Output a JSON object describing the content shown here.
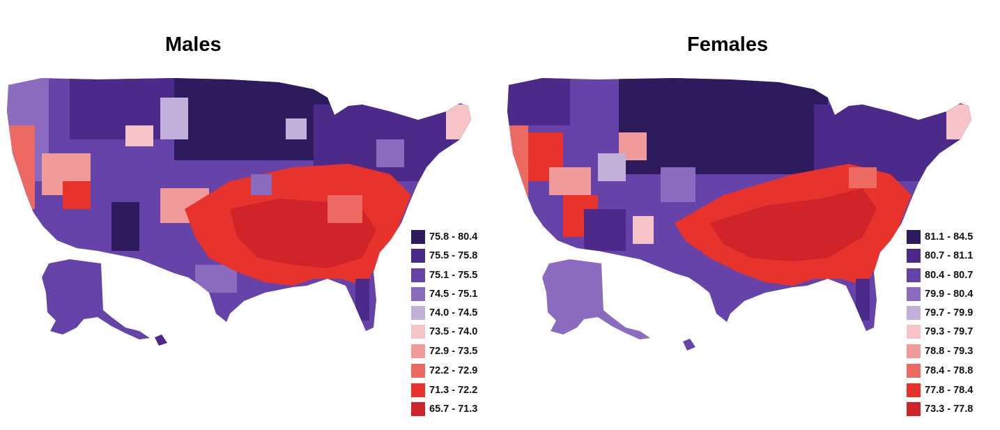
{
  "maps": [
    {
      "id": "males",
      "title": "Males",
      "legend": [
        {
          "label": "75.8 - 80.4",
          "color": "#2e1b5e"
        },
        {
          "label": "75.5 - 75.8",
          "color": "#4b2a8a"
        },
        {
          "label": "75.1 - 75.5",
          "color": "#6543a8"
        },
        {
          "label": "74.5 - 75.1",
          "color": "#8b6bbf"
        },
        {
          "label": "74.0 - 74.5",
          "color": "#c3b0da"
        },
        {
          "label": "73.5 - 74.0",
          "color": "#f6c3c7"
        },
        {
          "label": "72.9 - 73.5",
          "color": "#f09a9a"
        },
        {
          "label": "72.2 - 72.9",
          "color": "#ed6a63"
        },
        {
          "label": "71.3 - 72.2",
          "color": "#e8322c"
        },
        {
          "label": "65.7 - 71.3",
          "color": "#d0232a"
        }
      ]
    },
    {
      "id": "females",
      "title": "Females",
      "legend": [
        {
          "label": "81.1 - 84.5",
          "color": "#2e1b5e"
        },
        {
          "label": "80.7 - 81.1",
          "color": "#4b2a8a"
        },
        {
          "label": "80.4 - 80.7",
          "color": "#6543a8"
        },
        {
          "label": "79.9 - 80.4",
          "color": "#8b6bbf"
        },
        {
          "label": "79.7 - 79.9",
          "color": "#c3b0da"
        },
        {
          "label": "79.3 - 79.7",
          "color": "#f6c3c7"
        },
        {
          "label": "78.8 - 79.3",
          "color": "#f09a9a"
        },
        {
          "label": "78.4 - 78.8",
          "color": "#ed6a63"
        },
        {
          "label": "77.8 - 78.4",
          "color": "#e8322c"
        },
        {
          "label": "73.3 - 77.8",
          "color": "#d0232a"
        }
      ]
    }
  ]
}
